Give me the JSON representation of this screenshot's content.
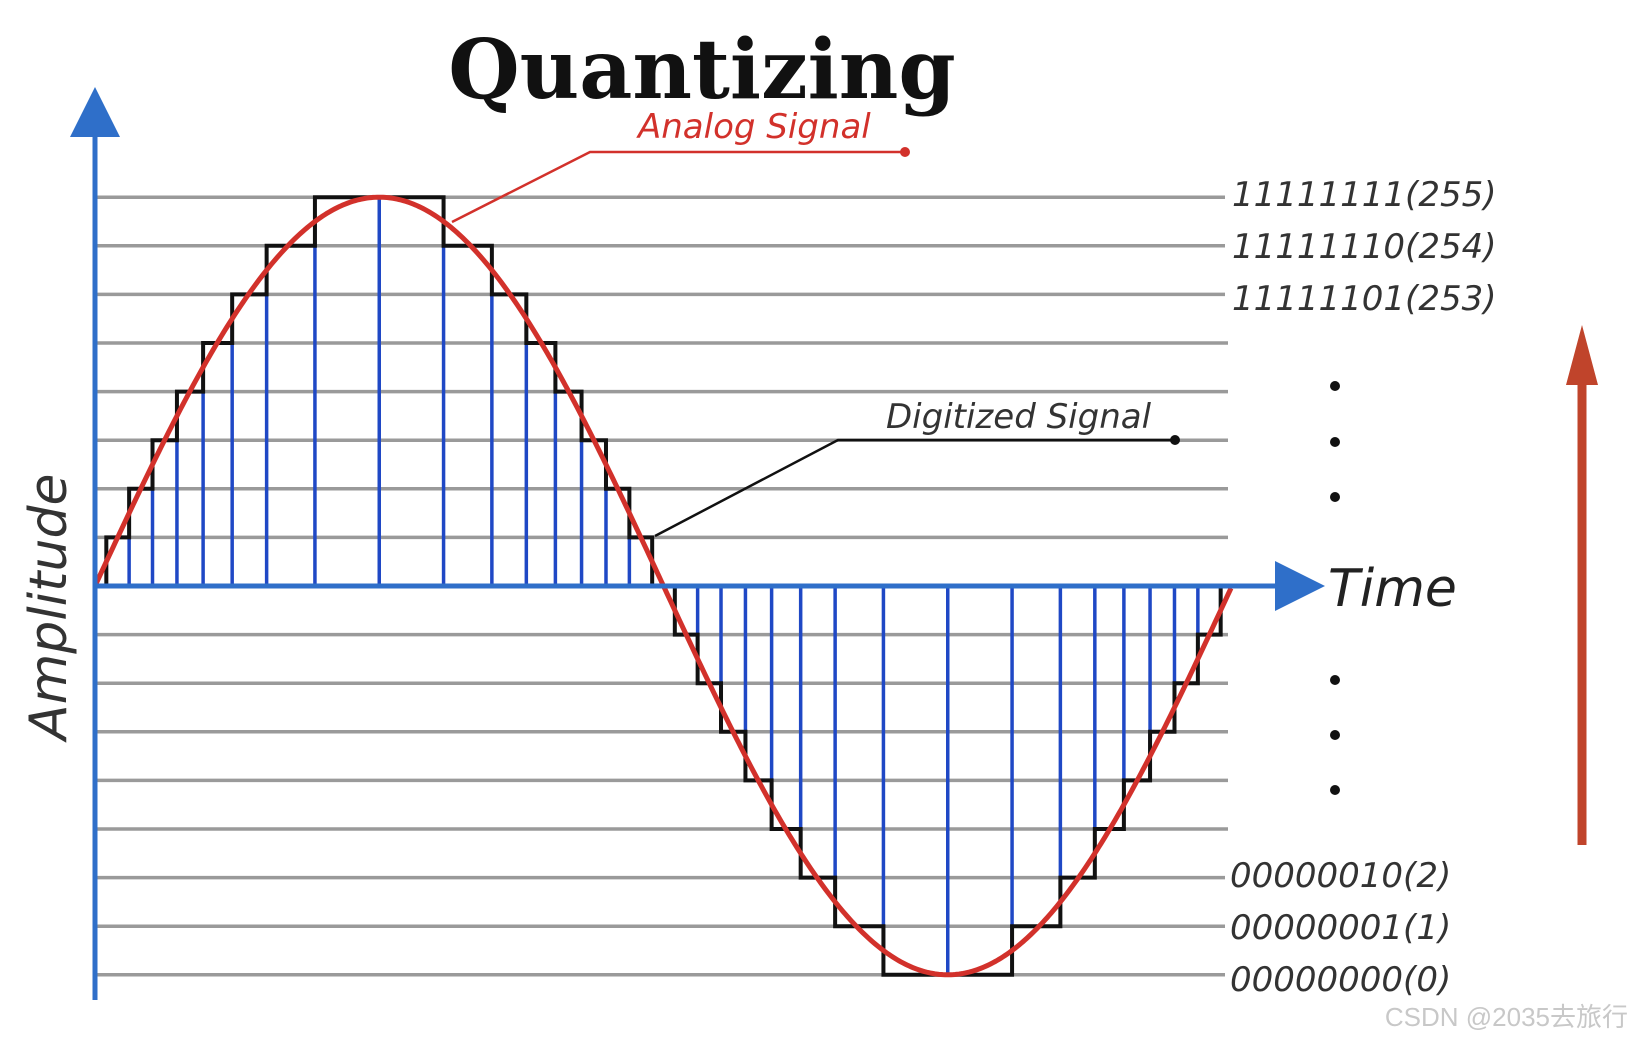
{
  "title": "Quantizing",
  "labels": {
    "analog": "Analog Signal",
    "digitized": "Digitized Signal",
    "x_axis": "Time",
    "y_axis": "Amplitude"
  },
  "level_codes": {
    "top": [
      "11111111(255)",
      "11111110(254)",
      "11111101(253)"
    ],
    "bottom": [
      "00000010(2)",
      "00000001(1)",
      "00000000(0)"
    ]
  },
  "watermark": "CSDN @2035去旅行",
  "colors": {
    "analog": "#d2312b",
    "digitized": "#111111",
    "samples": "#1f48c5",
    "axis": "#2f6fc9",
    "grid": "#9a9a9a",
    "direction_arrow": "#c0442b"
  },
  "signal": {
    "waveform": "sine",
    "cycles": 1,
    "quantization_levels": 256,
    "visible_levels_above_zero": 8,
    "visible_levels_below_zero": 8
  },
  "icons": {
    "vertical_dots": "ellipsis-vertical",
    "direction": "arrow-up"
  }
}
